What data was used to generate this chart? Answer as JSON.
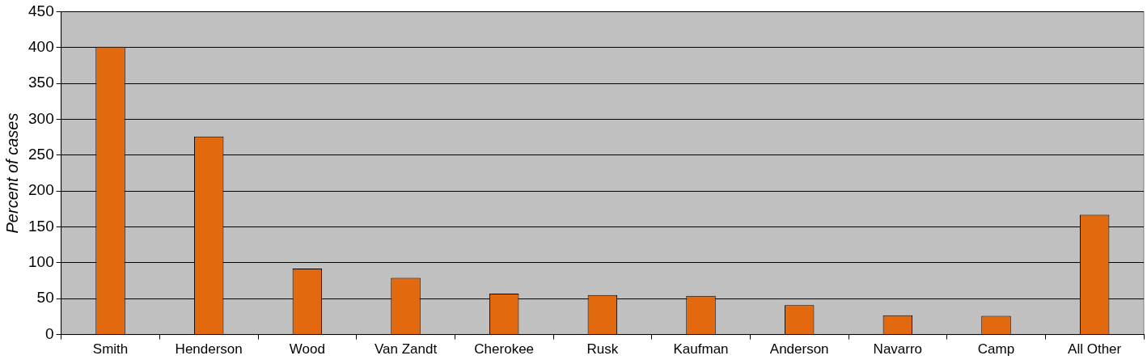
{
  "chart_data": {
    "type": "bar",
    "ylabel": "Percent of cases",
    "categories": [
      "Smith",
      "Henderson",
      "Wood",
      "Van Zandt",
      "Cherokee",
      "Rusk",
      "Kaufman",
      "Anderson",
      "Navarro",
      "Camp",
      "All Other"
    ],
    "values": [
      401,
      276,
      92,
      79,
      57,
      55,
      54,
      41,
      27,
      26,
      167
    ],
    "color": "#e3690e",
    "ylim": [
      0,
      450
    ],
    "yticks": [
      0,
      50,
      100,
      150,
      200,
      250,
      300,
      350,
      400,
      450
    ],
    "grid": "y"
  }
}
